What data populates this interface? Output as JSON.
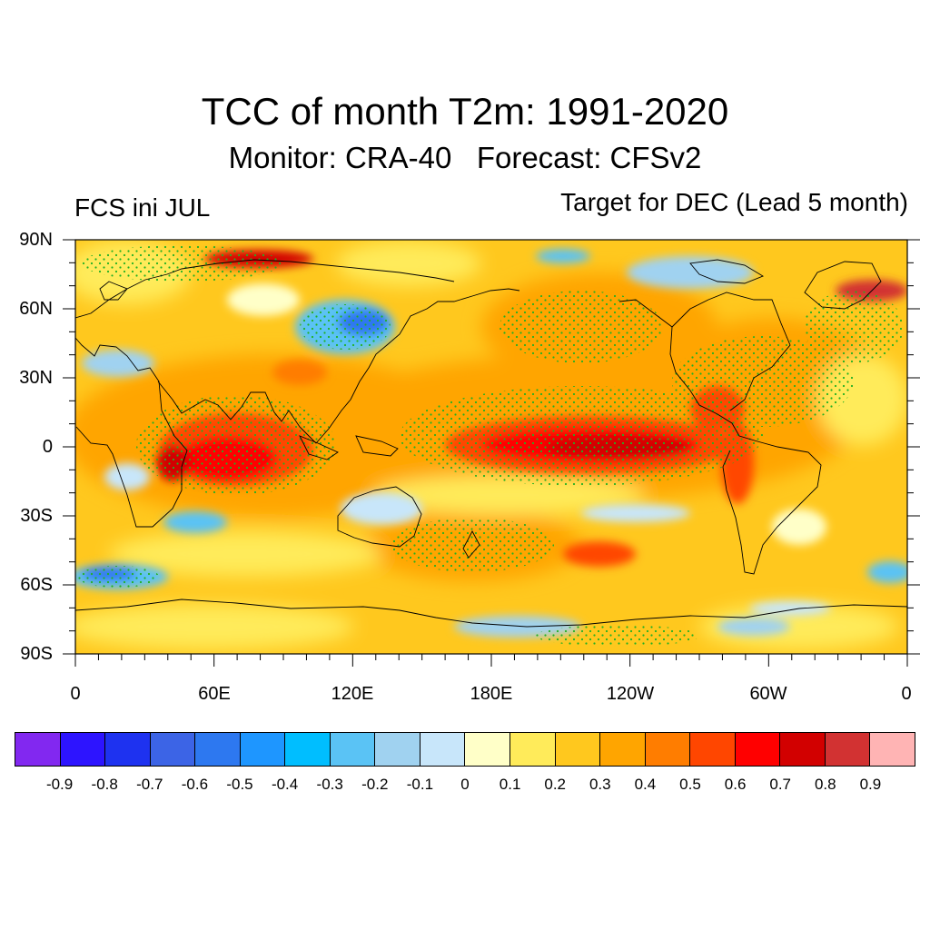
{
  "title": "TCC of month T2m: 1991-2020",
  "subtitle": "Monitor: CRA-40   Forecast: CFSv2",
  "left_label": "FCS ini JUL",
  "right_label": "Target for DEC (Lead 5 month)",
  "map": {
    "projection": "cylindrical-equidistant",
    "lon_range": [
      0,
      360
    ],
    "lat_range": [
      -90,
      90
    ],
    "lat_labels": [
      "90N",
      "60N",
      "30N",
      "0",
      "30S",
      "60S",
      "90S"
    ],
    "lon_labels": [
      "0",
      "60E",
      "120E",
      "180E",
      "120W",
      "60W",
      "0"
    ],
    "stipple_color": "#22b022",
    "coastline_color": "#000000"
  },
  "colorbar": {
    "colors": [
      "#8228f0",
      "#2d14ff",
      "#1e32f0",
      "#3c64e6",
      "#2d78f0",
      "#1e96ff",
      "#00beff",
      "#5ac3f5",
      "#a0d2f0",
      "#c8e6fa",
      "#ffffc8",
      "#ffeb5a",
      "#ffc81e",
      "#ffa500",
      "#ff7d00",
      "#ff4600",
      "#ff0000",
      "#d20000",
      "#d23232",
      "#ffb4b4"
    ],
    "labels": [
      "-0.9",
      "-0.8",
      "-0.7",
      "-0.6",
      "-0.5",
      "-0.4",
      "-0.3",
      "-0.2",
      "-0.1",
      "0",
      "0.1",
      "0.2",
      "0.3",
      "0.4",
      "0.5",
      "0.6",
      "0.7",
      "0.8",
      "0.9"
    ]
  }
}
